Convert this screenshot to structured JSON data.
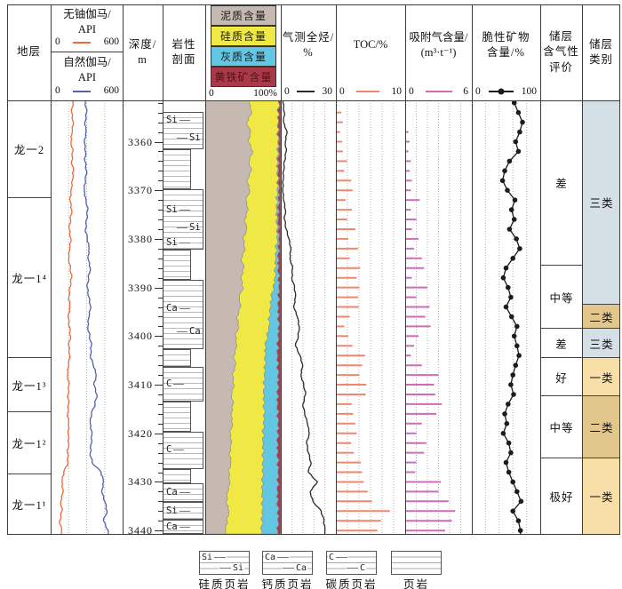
{
  "header": {
    "stratum_label": "地层",
    "gamma_u": {
      "line1": "无铀伽马/",
      "line2": "API",
      "min": "0",
      "max": "600",
      "color": "#ed6a3c"
    },
    "gamma_n": {
      "line1": "自然伽马/",
      "line2": "API",
      "min": "0",
      "max": "600",
      "color": "#5560a8"
    },
    "depth": {
      "line1": "深度/",
      "line2": "m"
    },
    "lithology": {
      "line1": "岩性",
      "line2": "剖面"
    },
    "composition": {
      "min": "0",
      "max": "100%",
      "boxes": [
        {
          "label": "泥质含量",
          "color": "#c5b9b2",
          "text_color": "#1a1a1a"
        },
        {
          "label": "硅质含量",
          "color": "#f0e845",
          "text_color": "#1a1a1a"
        },
        {
          "label": "灰质含量",
          "color": "#63c6e3",
          "text_color": "#1a1a1a"
        },
        {
          "label": "黄铁矿含量",
          "color": "#a93a48",
          "text_color": "#551019"
        }
      ]
    },
    "gas": {
      "line1": "气测全烃/",
      "line2": "%",
      "min": "0",
      "max": "30",
      "color": "#2b2b2b"
    },
    "toc": {
      "line1": "TOC/%",
      "min": "0",
      "max": "10",
      "color": "#f0876c"
    },
    "adsorbed": {
      "line1": "吸附气含量/",
      "line2": "(m³·t⁻¹)",
      "min": "0",
      "max": "6",
      "color": "#cf6cb8"
    },
    "brittle": {
      "line1": "脆性矿物",
      "line2": "含量/%",
      "min": "0",
      "max": "100",
      "color": "#1c1c1c"
    },
    "evaluation": {
      "line1": "储层",
      "line2": "含气性",
      "line3": "评价"
    },
    "category": {
      "line1": "储层",
      "line2": "类别"
    }
  },
  "depth_axis": {
    "top": 3351.5,
    "bottom": 3440.7,
    "major_ticks": [
      3360,
      3370,
      3380,
      3390,
      3400,
      3410,
      3420,
      3430,
      3440
    ],
    "minor_step": 2
  },
  "strata": [
    {
      "label": "龙一2",
      "from": 3351.5,
      "to": 3371.4
    },
    {
      "label": "龙一1⁴",
      "from": 3371.4,
      "to": 3404.4
    },
    {
      "label": "龙一1³",
      "from": 3404.4,
      "to": 3415.5
    },
    {
      "label": "龙一1²",
      "from": 3415.5,
      "to": 3428.3
    },
    {
      "label": "龙一1¹",
      "from": 3428.3,
      "to": 3440.7
    }
  ],
  "lithology_blocks": [
    {
      "from": 3353.8,
      "to": 3361.5,
      "wide": true,
      "symbols": [
        {
          "text": "Si",
          "at": 3355.6,
          "side": "left"
        },
        {
          "text": "Si",
          "at": 3359.2,
          "side": "right"
        }
      ]
    },
    {
      "from": 3361.5,
      "to": 3369.8,
      "wide": false,
      "symbols": []
    },
    {
      "from": 3369.8,
      "to": 3382.2,
      "wide": true,
      "symbols": [
        {
          "text": "Si",
          "at": 3373.9,
          "side": "left"
        },
        {
          "text": "Si",
          "at": 3377.6,
          "side": "right"
        },
        {
          "text": "Si",
          "at": 3380.8,
          "side": "left"
        }
      ]
    },
    {
      "from": 3382.2,
      "to": 3388.5,
      "wide": false,
      "symbols": []
    },
    {
      "from": 3388.5,
      "to": 3402.6,
      "wide": true,
      "symbols": [
        {
          "text": "Ca",
          "at": 3394.3,
          "side": "left"
        },
        {
          "text": "Ca",
          "at": 3399.0,
          "side": "right"
        }
      ]
    },
    {
      "from": 3402.6,
      "to": 3406.3,
      "wide": false,
      "symbols": []
    },
    {
      "from": 3406.3,
      "to": 3413.5,
      "wide": true,
      "symbols": [
        {
          "text": "C",
          "at": 3409.8,
          "side": "left"
        }
      ]
    },
    {
      "from": 3413.5,
      "to": 3419.6,
      "wide": false,
      "symbols": []
    },
    {
      "from": 3419.6,
      "to": 3427.4,
      "wide": true,
      "symbols": [
        {
          "text": "C",
          "at": 3423.3,
          "side": "left"
        }
      ]
    },
    {
      "from": 3427.4,
      "to": 3430.3,
      "wide": false,
      "symbols": []
    },
    {
      "from": 3430.3,
      "to": 3434.2,
      "wide": true,
      "symbols": [
        {
          "text": "Ca",
          "at": 3432.2,
          "side": "left"
        }
      ]
    },
    {
      "from": 3434.2,
      "to": 3437.8,
      "wide": true,
      "symbols": [
        {
          "text": "Si",
          "at": 3436.0,
          "side": "left"
        }
      ]
    },
    {
      "from": 3437.8,
      "to": 3440.7,
      "wide": true,
      "symbols": [
        {
          "text": "Ca",
          "at": 3439.2,
          "side": "left"
        }
      ]
    }
  ],
  "evaluation_cells": [
    {
      "label": "差",
      "from": 3351.5,
      "to": 3385.3
    },
    {
      "label": "中等",
      "from": 3385.3,
      "to": 3398.3
    },
    {
      "label": "差",
      "from": 3398.3,
      "to": 3404.4
    },
    {
      "label": "好",
      "from": 3404.4,
      "to": 3412.2
    },
    {
      "label": "中等",
      "from": 3412.2,
      "to": 3425.0
    },
    {
      "label": "极好",
      "from": 3425.0,
      "to": 3440.7
    }
  ],
  "category_cells": [
    {
      "label": "三类",
      "from": 3351.5,
      "to": 3393.4,
      "color": "#d4dfe6"
    },
    {
      "label": "二类",
      "from": 3393.4,
      "to": 3398.3,
      "color": "#e2c78d"
    },
    {
      "label": "三类",
      "from": 3398.3,
      "to": 3404.4,
      "color": "#d4dfe6"
    },
    {
      "label": "一类",
      "from": 3404.4,
      "to": 3412.2,
      "color": "#f8dfa8"
    },
    {
      "label": "二类",
      "from": 3412.2,
      "to": 3425.0,
      "color": "#e2c78d"
    },
    {
      "label": "一类",
      "from": 3425.0,
      "to": 3440.7,
      "color": "#f8dfa8"
    }
  ],
  "legend": [
    {
      "symbols": [
        "Si",
        "Si"
      ],
      "label": "硅质页岩"
    },
    {
      "symbols": [
        "Ca",
        "Ca"
      ],
      "label": "钙质页岩"
    },
    {
      "symbols": [
        "C",
        "C"
      ],
      "label": "碳质页岩"
    },
    {
      "symbols": [],
      "label": "页岩"
    }
  ],
  "chart_data": [
    {
      "type": "line",
      "name": "gamma",
      "track": "gamma",
      "x_range": [
        0,
        600
      ],
      "divisions": 4,
      "depths": [
        3352,
        3354,
        3356,
        3358,
        3360,
        3362,
        3364,
        3366,
        3368,
        3370,
        3372,
        3374,
        3376,
        3378,
        3380,
        3382,
        3384,
        3386,
        3388,
        3390,
        3392,
        3394,
        3396,
        3398,
        3400,
        3402,
        3404,
        3406,
        3408,
        3410,
        3412,
        3414,
        3416,
        3418,
        3420,
        3422,
        3424,
        3426,
        3428,
        3430,
        3432,
        3434,
        3436,
        3438,
        3440
      ],
      "series": [
        {
          "name": "无铀伽马/API",
          "color": "#ed6a3c",
          "values": [
            185,
            175,
            190,
            180,
            170,
            185,
            175,
            190,
            180,
            170,
            160,
            175,
            165,
            155,
            170,
            160,
            150,
            165,
            175,
            160,
            150,
            160,
            145,
            155,
            165,
            150,
            160,
            150,
            140,
            155,
            145,
            150,
            140,
            150,
            145,
            150,
            140,
            145,
            110,
            95,
            105,
            85,
            95,
            75,
            90
          ]
        },
        {
          "name": "自然伽马/API",
          "color": "#5560a8",
          "values": [
            290,
            300,
            285,
            295,
            280,
            290,
            285,
            300,
            290,
            280,
            295,
            310,
            300,
            290,
            305,
            320,
            310,
            330,
            315,
            305,
            320,
            335,
            320,
            310,
            325,
            340,
            330,
            355,
            380,
            360,
            385,
            370,
            340,
            330,
            345,
            340,
            330,
            345,
            420,
            440,
            425,
            450,
            470,
            440,
            480
          ]
        }
      ]
    },
    {
      "type": "area",
      "name": "composition",
      "track": "comp",
      "x_range": [
        0,
        100
      ],
      "divisions": 0,
      "depths": [
        3352,
        3354,
        3356,
        3358,
        3360,
        3362,
        3364,
        3366,
        3368,
        3370,
        3372,
        3374,
        3376,
        3378,
        3380,
        3382,
        3384,
        3386,
        3388,
        3390,
        3392,
        3394,
        3396,
        3398,
        3400,
        3402,
        3404,
        3406,
        3408,
        3410,
        3412,
        3414,
        3416,
        3418,
        3420,
        3422,
        3424,
        3426,
        3428,
        3430,
        3432,
        3434,
        3436,
        3438,
        3440
      ],
      "series": [
        {
          "name": "泥质含量",
          "color": "#c5b9b2",
          "values": [
            58,
            62,
            55,
            60,
            57,
            63,
            58,
            61,
            55,
            59,
            54,
            57,
            52,
            55,
            50,
            53,
            48,
            51,
            47,
            50,
            45,
            47,
            42,
            44,
            40,
            42,
            38,
            40,
            36,
            38,
            35,
            37,
            34,
            36,
            33,
            35,
            32,
            34,
            31,
            33,
            30,
            28,
            31,
            29,
            27
          ]
        },
        {
          "name": "硅质含量",
          "color": "#f0e845",
          "values": [
            39,
            35,
            42,
            36,
            39,
            33,
            38,
            35,
            41,
            36,
            41,
            38,
            43,
            40,
            45,
            41,
            46,
            42,
            45,
            40,
            43,
            40,
            43,
            40,
            42,
            38,
            42,
            39,
            42,
            40,
            43,
            41,
            44,
            41,
            44,
            42,
            45,
            42,
            45,
            43,
            46,
            48,
            44,
            46,
            48
          ]
        },
        {
          "name": "灰质含量",
          "color": "#63c6e3",
          "values": [
            0,
            0,
            0,
            1,
            1,
            1,
            1,
            1,
            1,
            2,
            2,
            2,
            2,
            2,
            2,
            3,
            3,
            4,
            5,
            7,
            9,
            10,
            12,
            13,
            14,
            16,
            16,
            17,
            18,
            18,
            18,
            18,
            18,
            19,
            19,
            19,
            19,
            20,
            20,
            20,
            20,
            20,
            21,
            21,
            21
          ]
        },
        {
          "name": "黄铁矿含量",
          "color": "#a93a48",
          "values": [
            3,
            3,
            3,
            3,
            3,
            3,
            3,
            3,
            3,
            3,
            3,
            3,
            3,
            3,
            3,
            3,
            3,
            3,
            3,
            3,
            3,
            3,
            3,
            3,
            4,
            4,
            4,
            4,
            4,
            4,
            4,
            4,
            4,
            4,
            4,
            4,
            4,
            4,
            4,
            4,
            4,
            4,
            4,
            4,
            4
          ]
        }
      ]
    },
    {
      "type": "line",
      "name": "gas",
      "track": "gas",
      "x_range": [
        0,
        30
      ],
      "divisions": 5,
      "depths": [
        3352,
        3354,
        3356,
        3358,
        3360,
        3362,
        3364,
        3366,
        3368,
        3370,
        3372,
        3374,
        3376,
        3378,
        3380,
        3382,
        3384,
        3386,
        3388,
        3390,
        3392,
        3394,
        3396,
        3398,
        3400,
        3402,
        3404,
        3406,
        3408,
        3410,
        3412,
        3414,
        3416,
        3418,
        3420,
        3422,
        3424,
        3426,
        3428,
        3430,
        3432,
        3434,
        3436,
        3438,
        3440
      ],
      "series": [
        {
          "name": "气测全烃/%",
          "color": "#2b2b2b",
          "values": [
            1.2,
            2,
            1.5,
            3.5,
            2.5,
            3,
            2,
            1.5,
            1.2,
            1,
            1.5,
            2.5,
            2,
            3,
            4.5,
            5.5,
            5,
            6.5,
            6,
            7.5,
            8,
            7,
            9,
            10,
            9.5,
            8,
            10.5,
            12,
            11,
            12.5,
            13.5,
            12,
            13,
            14.5,
            15.5,
            14,
            15,
            16.5,
            15,
            20,
            16,
            17.5,
            22,
            23.5,
            24
          ]
        }
      ]
    },
    {
      "type": "bar",
      "name": "toc",
      "track": "toc",
      "x_range": [
        0,
        10
      ],
      "divisions": 6,
      "color": "#f0876c",
      "depths": [
        3352,
        3354,
        3356,
        3358,
        3360,
        3362,
        3364,
        3366,
        3368,
        3370,
        3372,
        3374,
        3376,
        3378,
        3380,
        3382,
        3384,
        3386,
        3388,
        3390,
        3392,
        3394,
        3396,
        3398,
        3400,
        3402,
        3404,
        3406,
        3408,
        3410,
        3412,
        3414,
        3416,
        3418,
        3420,
        3422,
        3424,
        3426,
        3428,
        3430,
        3432,
        3434,
        3436,
        3438,
        3440
      ],
      "values": [
        null,
        0.8,
        1,
        0.6,
        0.9,
        1,
        1.6,
        1.2,
        2.2,
        2.4,
        1.4,
        2.3,
        1.6,
        2.8,
        1.8,
        3.2,
        2,
        3.5,
        3,
        3.4,
        3.2,
        3.3,
        2,
        1.2,
        1.8,
        2.4,
        4.2,
        3.8,
        3.4,
        4.4,
        4.3,
        2.3,
        2.5,
        2.8,
        3,
        2.2,
        2.6,
        3.6,
        3.8,
        4,
        4.6,
        5.2,
        7.8,
        6.5,
        6
      ]
    },
    {
      "type": "bar",
      "name": "adsorbed",
      "track": "ads",
      "x_range": [
        0,
        6
      ],
      "divisions": 6,
      "color": "#cf6cb8",
      "depths": [
        3352,
        3354,
        3356,
        3358,
        3360,
        3362,
        3364,
        3366,
        3368,
        3370,
        3372,
        3374,
        3376,
        3378,
        3380,
        3382,
        3384,
        3386,
        3388,
        3390,
        3392,
        3394,
        3396,
        3398,
        3400,
        3402,
        3404,
        3406,
        3408,
        3410,
        3412,
        3414,
        3416,
        3418,
        3420,
        3422,
        3424,
        3426,
        3428,
        3430,
        3432,
        3434,
        3436,
        3438,
        3440
      ],
      "values": [
        null,
        null,
        null,
        0.3,
        0.4,
        0.3,
        0.5,
        0.4,
        0.6,
        0.5,
        1.3,
        0.5,
        1,
        0.6,
        1.2,
        0.8,
        1.5,
        1.7,
        0.6,
        2,
        1,
        2.2,
        1.8,
        2.3,
        1.2,
        0.8,
        0.5,
        1.5,
        3,
        2.6,
        2.7,
        3.3,
        2.8,
        1.5,
        1,
        1.9,
        1.7,
        1,
        0.9,
        3.2,
        3,
        3.9,
        4.5,
        4.2,
        3.6
      ]
    },
    {
      "type": "line",
      "name": "brittle",
      "track": "brit",
      "x_range": [
        0,
        100
      ],
      "divisions": 5,
      "markers": true,
      "depths": [
        3352,
        3354,
        3356,
        3358,
        3360,
        3362,
        3364,
        3366,
        3368,
        3370,
        3372,
        3374,
        3376,
        3378,
        3380,
        3382,
        3384,
        3386,
        3388,
        3390,
        3392,
        3394,
        3396,
        3398,
        3400,
        3402,
        3404,
        3406,
        3408,
        3410,
        3412,
        3414,
        3416,
        3418,
        3420,
        3422,
        3424,
        3426,
        3428,
        3430,
        3432,
        3434,
        3436,
        3438,
        3440
      ],
      "series": [
        {
          "name": "脆性矿物含量/%",
          "color": "#1c1c1c",
          "values": [
            62,
            68,
            74,
            70,
            64,
            68,
            55,
            48,
            45,
            52,
            63,
            58,
            62,
            55,
            65,
            70,
            60,
            50,
            46,
            53,
            57,
            50,
            58,
            66,
            62,
            66,
            69,
            64,
            60,
            57,
            61,
            53,
            48,
            51,
            46,
            54,
            57,
            50,
            54,
            60,
            66,
            72,
            60,
            68,
            71
          ]
        }
      ]
    }
  ]
}
